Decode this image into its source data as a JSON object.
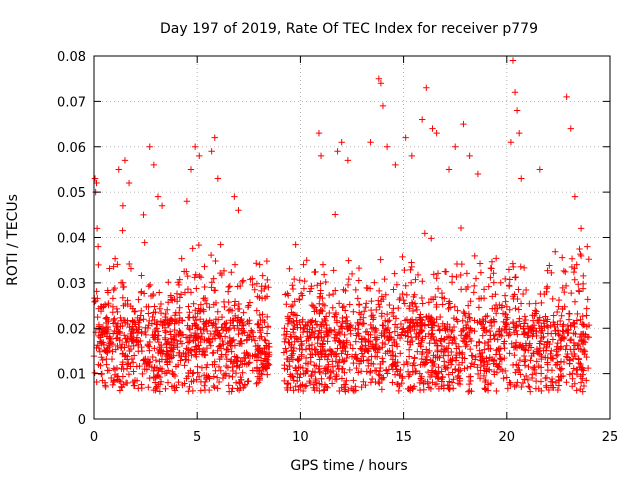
{
  "chart_data": {
    "type": "scatter",
    "title": "Day 197 of 2019, Rate Of TEC Index for receiver p779",
    "xlabel": "GPS time / hours",
    "ylabel": "ROTI / TECUs",
    "xlim": [
      0,
      25
    ],
    "ylim": [
      0,
      0.08
    ],
    "x_ticks": [
      "0",
      "5",
      "10",
      "15",
      "20",
      "25"
    ],
    "y_ticks": [
      "0",
      "0.01",
      "0.02",
      "0.03",
      "0.04",
      "0.05",
      "0.06",
      "0.07",
      "0.08"
    ],
    "grid": true,
    "legend": "none",
    "marker": "plus",
    "series": [
      {
        "color": "#ff0000",
        "data_gap_hours": [
          8.5,
          9.2
        ],
        "points": [
          [
            0.05,
            0.053
          ],
          [
            0.08,
            0.05
          ],
          [
            0.12,
            0.052
          ],
          [
            0.15,
            0.042
          ],
          [
            0.2,
            0.038
          ],
          [
            1.2,
            0.055
          ],
          [
            1.4,
            0.047
          ],
          [
            1.5,
            0.057
          ],
          [
            1.7,
            0.052
          ],
          [
            2.4,
            0.045
          ],
          [
            2.7,
            0.06
          ],
          [
            2.9,
            0.056
          ],
          [
            3.1,
            0.049
          ],
          [
            3.3,
            0.047
          ],
          [
            4.5,
            0.048
          ],
          [
            4.7,
            0.055
          ],
          [
            4.9,
            0.06
          ],
          [
            5.1,
            0.058
          ],
          [
            5.7,
            0.059
          ],
          [
            5.85,
            0.062
          ],
          [
            6.0,
            0.053
          ],
          [
            6.8,
            0.049
          ],
          [
            7.0,
            0.046
          ],
          [
            10.9,
            0.063
          ],
          [
            11.0,
            0.058
          ],
          [
            11.8,
            0.059
          ],
          [
            12.0,
            0.061
          ],
          [
            12.3,
            0.057
          ],
          [
            13.4,
            0.061
          ],
          [
            13.8,
            0.075
          ],
          [
            13.9,
            0.074
          ],
          [
            14.0,
            0.069
          ],
          [
            14.2,
            0.06
          ],
          [
            14.6,
            0.056
          ],
          [
            15.1,
            0.062
          ],
          [
            15.4,
            0.058
          ],
          [
            15.9,
            0.066
          ],
          [
            16.1,
            0.073
          ],
          [
            16.4,
            0.064
          ],
          [
            16.6,
            0.063
          ],
          [
            17.2,
            0.055
          ],
          [
            17.5,
            0.06
          ],
          [
            17.9,
            0.065
          ],
          [
            18.2,
            0.058
          ],
          [
            18.6,
            0.054
          ],
          [
            20.3,
            0.079
          ],
          [
            20.4,
            0.072
          ],
          [
            20.5,
            0.068
          ],
          [
            20.6,
            0.063
          ],
          [
            20.2,
            0.061
          ],
          [
            20.7,
            0.053
          ],
          [
            21.6,
            0.055
          ],
          [
            22.9,
            0.071
          ],
          [
            23.1,
            0.064
          ],
          [
            23.3,
            0.049
          ],
          [
            23.6,
            0.042
          ],
          [
            23.9,
            0.038
          ]
        ]
      }
    ]
  }
}
